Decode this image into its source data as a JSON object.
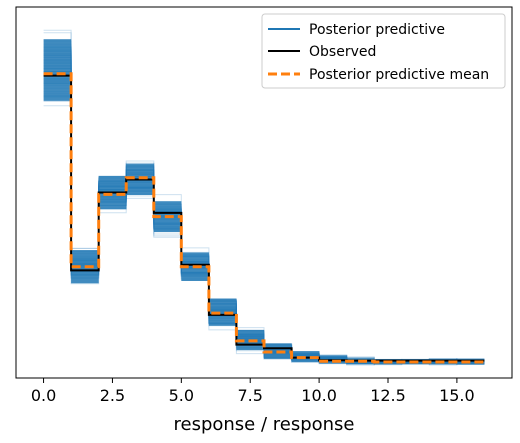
{
  "chart_data": {
    "type": "line",
    "title": "",
    "xlabel": "response / response",
    "ylabel": "",
    "xlim": [
      -1.0,
      17.0
    ],
    "ylim": [
      0.0,
      1.0
    ],
    "x_ticks": [
      {
        "value": 0.0,
        "label": "0.0"
      },
      {
        "value": 2.5,
        "label": "2.5"
      },
      {
        "value": 5.0,
        "label": "5.0"
      },
      {
        "value": 7.5,
        "label": "7.5"
      },
      {
        "value": 10.0,
        "label": "10.0"
      },
      {
        "value": 12.5,
        "label": "12.5"
      },
      {
        "value": 15.0,
        "label": "15.0"
      }
    ],
    "y_ticks_shown": false,
    "grid": false,
    "legend_position": "upper right",
    "legend": [
      {
        "label": "Posterior predictive",
        "color": "#1f77b4",
        "style": "solid"
      },
      {
        "label": "Observed",
        "color": "#000000",
        "style": "solid"
      },
      {
        "label": "Posterior predictive mean",
        "color": "#ff7f0e",
        "style": "dashed"
      }
    ],
    "bin_edges": [
      0,
      1,
      2,
      3,
      4,
      5,
      6,
      7,
      8,
      9,
      10,
      11,
      12,
      13,
      14,
      15,
      16
    ],
    "series": [
      {
        "name": "Observed",
        "color": "#000000",
        "values": [
          0.815,
          0.29,
          0.5,
          0.535,
          0.445,
          0.305,
          0.17,
          0.09,
          0.08,
          0.055,
          0.048,
          0.047,
          0.047,
          0.047,
          0.047,
          0.047
        ]
      },
      {
        "name": "Posterior predictive mean",
        "color": "#ff7f0e",
        "values": [
          0.82,
          0.3,
          0.495,
          0.54,
          0.435,
          0.3,
          0.175,
          0.1,
          0.07,
          0.055,
          0.045,
          0.045,
          0.043,
          0.043,
          0.043,
          0.043
        ]
      }
    ],
    "posterior_predictive": {
      "name": "Posterior predictive",
      "color": "#1f77b4",
      "lower": [
        0.7,
        0.23,
        0.43,
        0.47,
        0.37,
        0.24,
        0.12,
        0.06,
        0.04,
        0.035,
        0.033,
        0.033,
        0.033,
        0.033,
        0.033,
        0.033
      ],
      "upper": [
        0.96,
        0.37,
        0.57,
        0.6,
        0.5,
        0.36,
        0.235,
        0.145,
        0.105,
        0.08,
        0.065,
        0.058,
        0.055,
        0.055,
        0.055,
        0.055
      ]
    }
  }
}
